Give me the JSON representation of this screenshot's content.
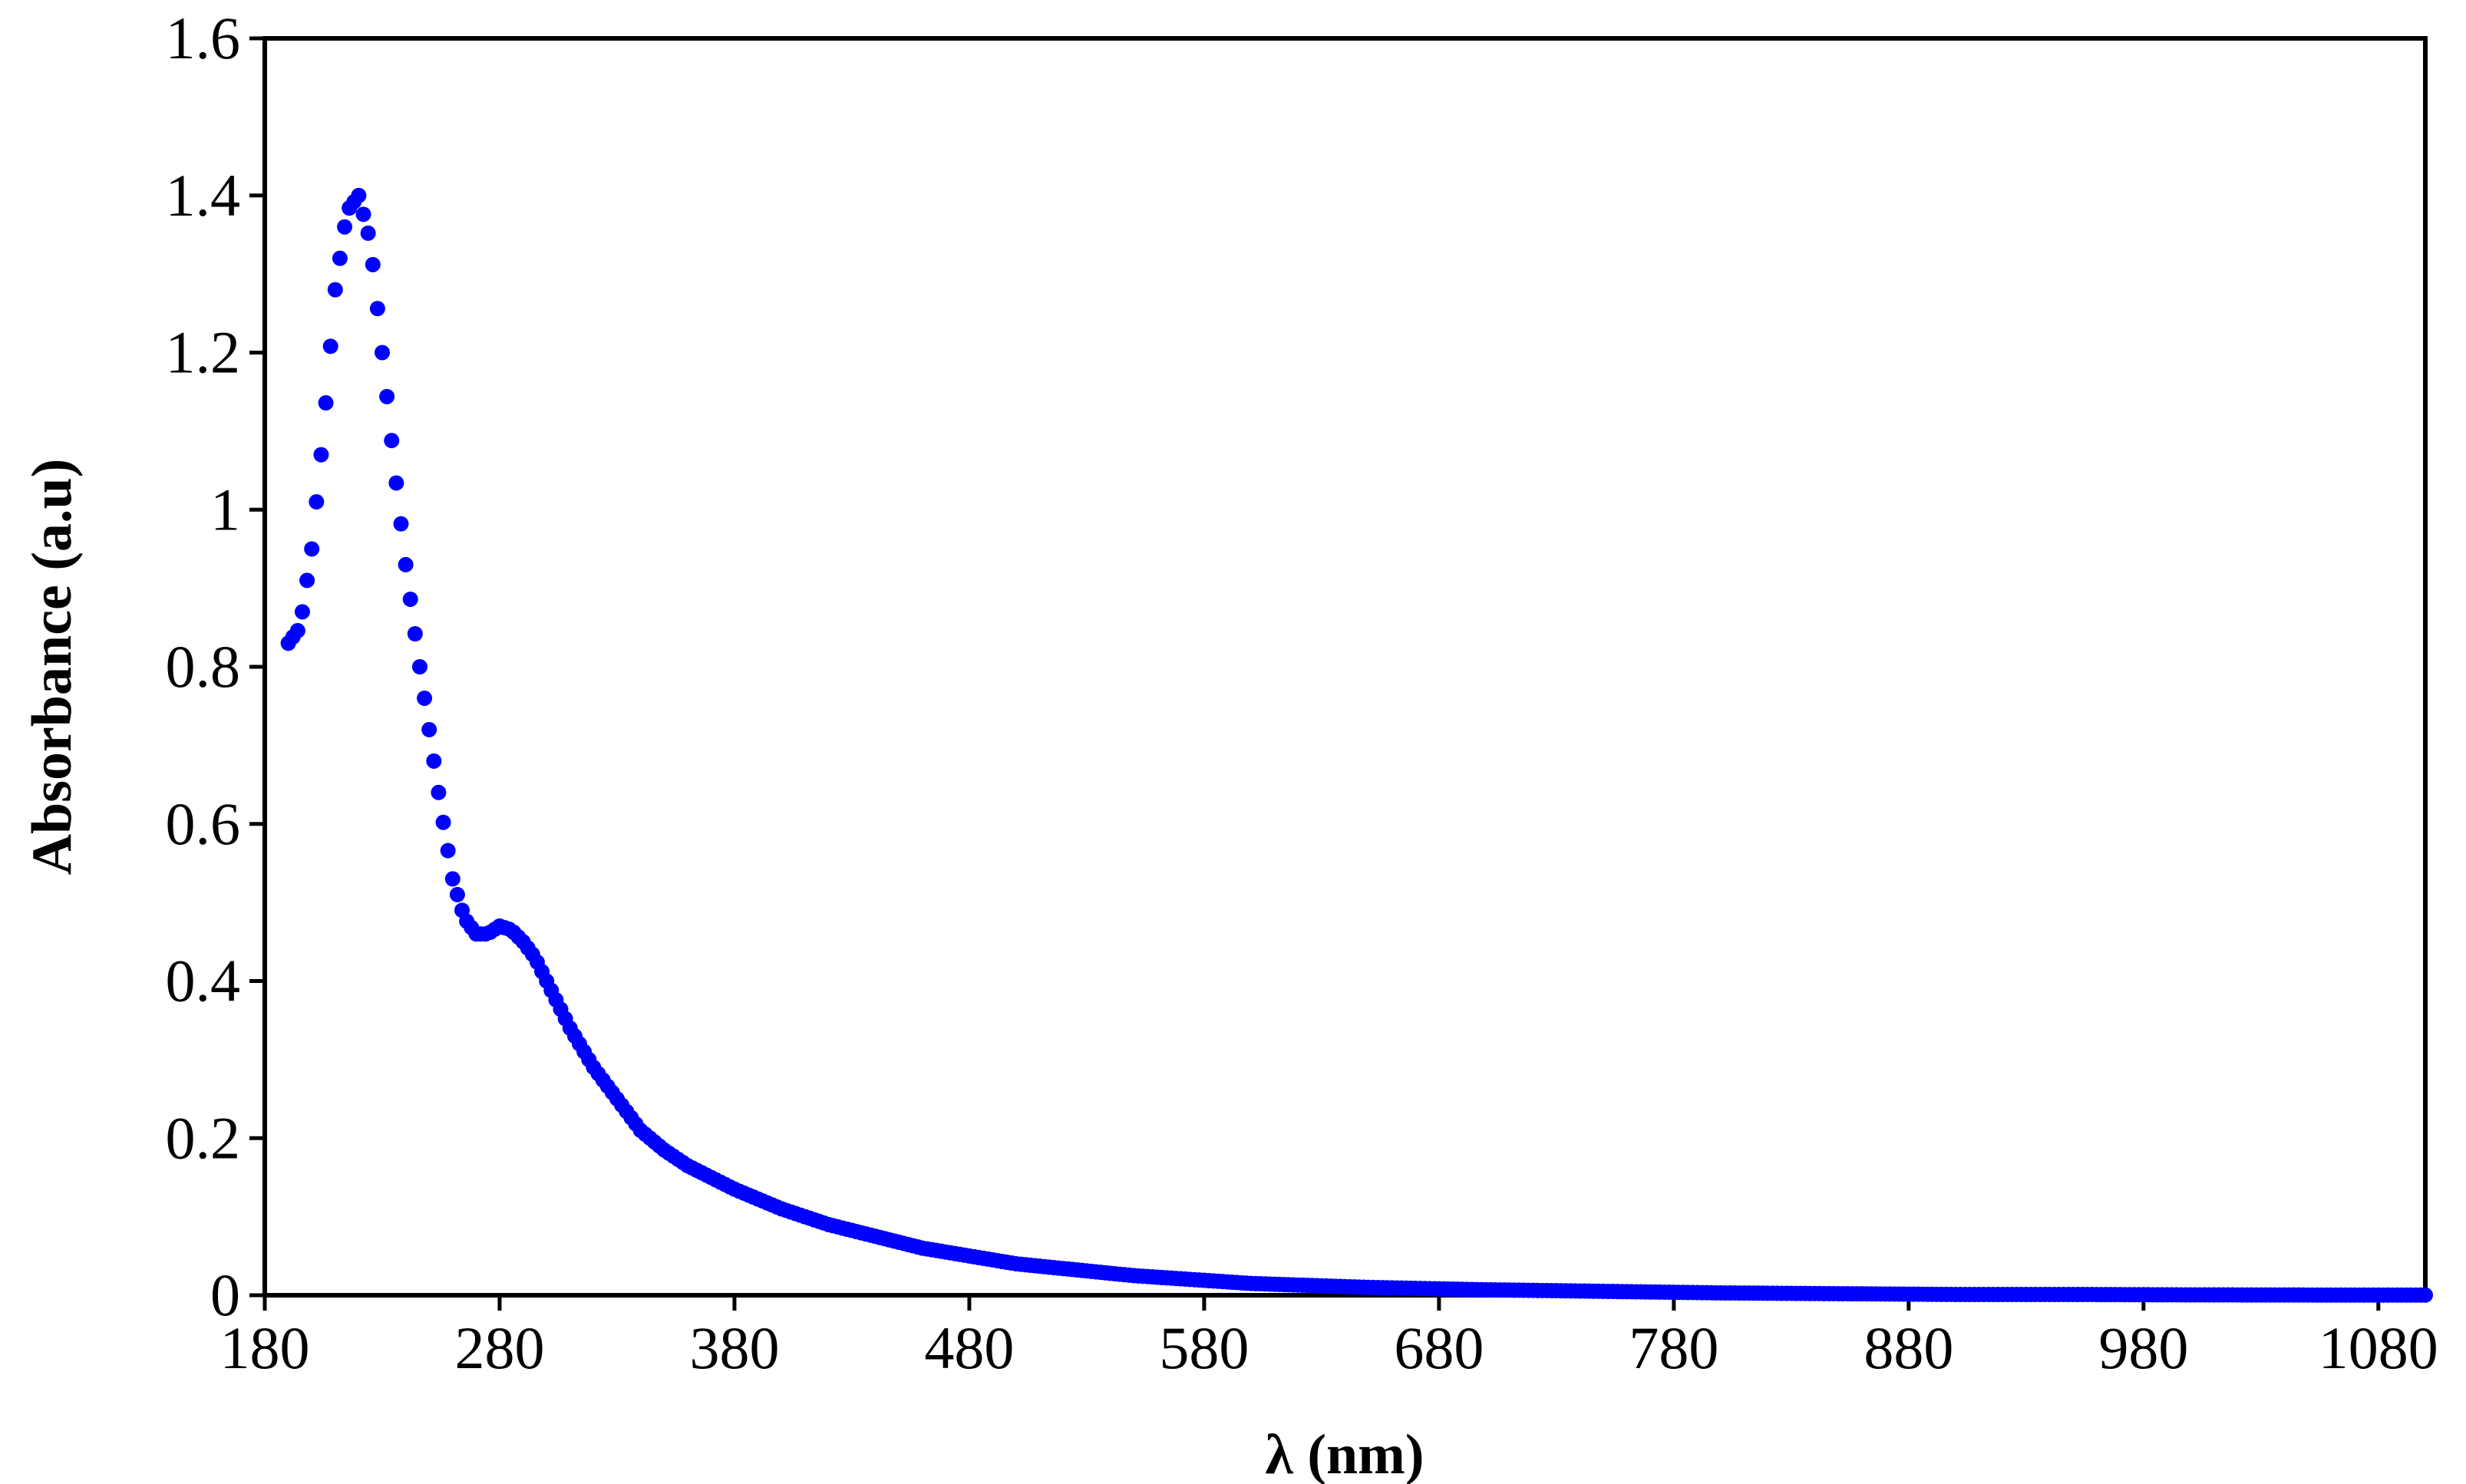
{
  "chart_data": {
    "type": "scatter",
    "xlabel": "λ (nm)",
    "ylabel": "Absorbance  (a.u)",
    "xlim": [
      180,
      1100
    ],
    "ylim": [
      0,
      1.6
    ],
    "x_ticks": [
      "180",
      "280",
      "380",
      "480",
      "580",
      "680",
      "780",
      "880",
      "980",
      "1080"
    ],
    "y_ticks": [
      "0",
      "0.2",
      "0.4",
      "0.6",
      "0.8",
      "1",
      "1.2",
      "1.4",
      "1.6"
    ],
    "grid": false,
    "legend": "none",
    "marker_color": "#0000ff",
    "x": [
      190,
      195,
      200,
      205,
      210,
      215,
      220,
      225,
      230,
      235,
      240,
      245,
      250,
      255,
      260,
      265,
      270,
      275,
      280,
      285,
      290,
      295,
      300,
      310,
      320,
      330,
      340,
      350,
      360,
      380,
      400,
      420,
      440,
      460,
      480,
      500,
      550,
      600,
      650,
      700,
      750,
      800,
      850,
      900,
      950,
      1000,
      1050,
      1100
    ],
    "y": [
      0.83,
      0.85,
      0.95,
      1.1,
      1.28,
      1.38,
      1.4,
      1.34,
      1.2,
      1.06,
      0.93,
      0.82,
      0.72,
      0.62,
      0.53,
      0.48,
      0.46,
      0.46,
      0.47,
      0.465,
      0.45,
      0.43,
      0.4,
      0.34,
      0.29,
      0.25,
      0.21,
      0.185,
      0.165,
      0.135,
      0.11,
      0.09,
      0.075,
      0.06,
      0.05,
      0.04,
      0.025,
      0.015,
      0.01,
      0.007,
      0.005,
      0.003,
      0.002,
      0.001,
      0.001,
      0.0005,
      0.0003,
      0.0002
    ]
  }
}
